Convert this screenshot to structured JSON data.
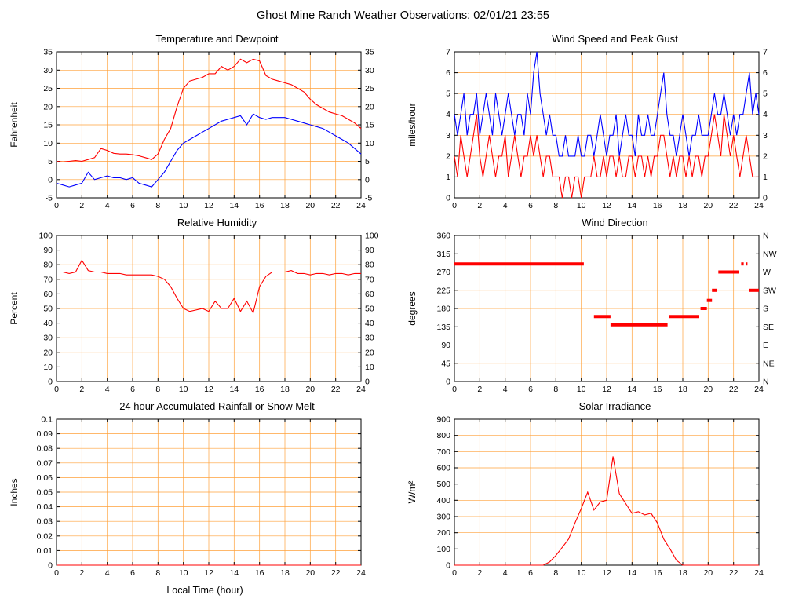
{
  "page_title": "Ghost Mine Ranch Weather Observations: 02/01/21 23:55",
  "x_axis_label": "Local Time (hour)",
  "colors": {
    "grid": "#ffa13a",
    "red": "#ff0000",
    "blue": "#0000ff",
    "axis": "#000000"
  },
  "chart_data": [
    {
      "id": "temperature-dewpoint",
      "type": "line",
      "title": "Temperature and Dewpoint",
      "ylabel": "Fahrenheit",
      "xlim": [
        0,
        24
      ],
      "ylim": [
        -5,
        35
      ],
      "xticks": [
        0,
        2,
        4,
        6,
        8,
        10,
        12,
        14,
        16,
        18,
        20,
        22,
        24
      ],
      "yticks": [
        -5,
        0,
        5,
        10,
        15,
        20,
        25,
        30,
        35
      ],
      "right": "same",
      "x_step": 0.5,
      "series": [
        {
          "name": "Temperature",
          "color": "red",
          "y": [
            5,
            4.8,
            5,
            5.2,
            5,
            5.5,
            6,
            8.5,
            8,
            7.2,
            7,
            7,
            6.8,
            6.5,
            6,
            5.5,
            7,
            11,
            14,
            20,
            25,
            27,
            27.5,
            28,
            29,
            29,
            31,
            30,
            31,
            33,
            32,
            33,
            32.5,
            28.5,
            27.5,
            27,
            26.5,
            26,
            25,
            24,
            22,
            20.5,
            19.5,
            18.5,
            18,
            17.5,
            16.5,
            15.5,
            14
          ]
        },
        {
          "name": "Dewpoint",
          "color": "blue",
          "y": [
            -1,
            -1.5,
            -2,
            -1.5,
            -1,
            2,
            0,
            0.5,
            1,
            0.5,
            0.5,
            0,
            0.5,
            -1,
            -1.5,
            -2,
            0,
            2,
            5,
            8,
            10,
            11,
            12,
            13,
            14,
            15,
            16,
            16.5,
            17,
            17.5,
            15,
            18,
            17,
            16.5,
            17,
            17,
            17,
            16.5,
            16,
            15.5,
            15,
            14.5,
            14,
            13,
            12,
            11,
            10,
            8.5,
            7
          ]
        }
      ]
    },
    {
      "id": "wind-speed-gust",
      "type": "line",
      "title": "Wind Speed and Peak Gust",
      "ylabel": "miles/hour",
      "xlim": [
        0,
        24
      ],
      "ylim": [
        0,
        7
      ],
      "xticks": [
        0,
        2,
        4,
        6,
        8,
        10,
        12,
        14,
        16,
        18,
        20,
        22,
        24
      ],
      "yticks": [
        0,
        1,
        2,
        3,
        4,
        5,
        6,
        7
      ],
      "right": "same",
      "x_step": 0.25,
      "series": [
        {
          "name": "Peak Gust",
          "color": "blue",
          "y": [
            4,
            3,
            4,
            5,
            3,
            4,
            4,
            5,
            3,
            4,
            5,
            4,
            3,
            5,
            4,
            3,
            4,
            5,
            4,
            3,
            4,
            4,
            3,
            5,
            4,
            6,
            7,
            5,
            4,
            3,
            4,
            3,
            3,
            2,
            2,
            3,
            2,
            2,
            2,
            3,
            2,
            2,
            3,
            3,
            2,
            3,
            4,
            3,
            2,
            3,
            3,
            4,
            2,
            3,
            4,
            3,
            3,
            2,
            4,
            3,
            3,
            4,
            3,
            3,
            4,
            5,
            6,
            4,
            3,
            3,
            2,
            3,
            4,
            3,
            2,
            3,
            3,
            4,
            3,
            3,
            3,
            4,
            5,
            4,
            4,
            5,
            4,
            3,
            4,
            3,
            4,
            4,
            5,
            6,
            4,
            5,
            4
          ]
        },
        {
          "name": "Wind Speed",
          "color": "red",
          "y": [
            2,
            1,
            3,
            2,
            1,
            2,
            3,
            4,
            2,
            1,
            2,
            3,
            2,
            1,
            2,
            2,
            3,
            1,
            2,
            3,
            2,
            1,
            2,
            2,
            3,
            2,
            3,
            2,
            1,
            2,
            2,
            1,
            1,
            1,
            0,
            1,
            1,
            0,
            1,
            1,
            0,
            1,
            1,
            1,
            2,
            1,
            1,
            2,
            1,
            2,
            2,
            1,
            2,
            1,
            1,
            2,
            2,
            1,
            2,
            2,
            1,
            2,
            1,
            2,
            2,
            3,
            3,
            2,
            1,
            2,
            1,
            2,
            2,
            1,
            2,
            1,
            2,
            2,
            1,
            2,
            2,
            3,
            4,
            3,
            2,
            4,
            3,
            2,
            3,
            2,
            1,
            2,
            3,
            2,
            1,
            1,
            1
          ]
        }
      ]
    },
    {
      "id": "relative-humidity",
      "type": "line",
      "title": "Relative Humidity",
      "ylabel": "Percent",
      "xlim": [
        0,
        24
      ],
      "ylim": [
        0,
        100
      ],
      "xticks": [
        0,
        2,
        4,
        6,
        8,
        10,
        12,
        14,
        16,
        18,
        20,
        22,
        24
      ],
      "yticks": [
        0,
        10,
        20,
        30,
        40,
        50,
        60,
        70,
        80,
        90,
        100
      ],
      "right": "same",
      "x_step": 0.5,
      "series": [
        {
          "name": "Relative Humidity",
          "color": "red",
          "y": [
            75,
            75,
            74,
            75,
            83,
            76,
            75,
            75,
            74,
            74,
            74,
            73,
            73,
            73,
            73,
            73,
            72,
            70,
            65,
            57,
            50,
            48,
            49,
            50,
            48,
            55,
            50,
            50,
            57,
            48,
            55,
            47,
            65,
            72,
            75,
            75,
            75,
            76,
            74,
            74,
            73,
            74,
            74,
            73,
            74,
            74,
            73,
            74,
            74
          ]
        }
      ]
    },
    {
      "id": "wind-direction",
      "type": "segments",
      "title": "Wind Direction",
      "ylabel": "degrees",
      "xlim": [
        0,
        24
      ],
      "ylim": [
        0,
        360
      ],
      "xticks": [
        0,
        2,
        4,
        6,
        8,
        10,
        12,
        14,
        16,
        18,
        20,
        22,
        24
      ],
      "yticks": [
        0,
        45,
        90,
        135,
        180,
        225,
        270,
        315,
        360
      ],
      "right_labels": [
        {
          "value": 360,
          "label": "N"
        },
        {
          "value": 315,
          "label": "NW"
        },
        {
          "value": 270,
          "label": "W"
        },
        {
          "value": 225,
          "label": "SW"
        },
        {
          "value": 180,
          "label": "S"
        },
        {
          "value": 135,
          "label": "SE"
        },
        {
          "value": 90,
          "label": "E"
        },
        {
          "value": 45,
          "label": "NE"
        },
        {
          "value": 0,
          "label": "N"
        }
      ],
      "series": [
        {
          "name": "Wind Direction",
          "color": "red",
          "segments": [
            [
              0,
              10.2,
              290
            ],
            [
              11.0,
              12.3,
              160
            ],
            [
              12.3,
              16.8,
              140
            ],
            [
              16.9,
              19.3,
              160
            ],
            [
              19.4,
              19.9,
              180
            ],
            [
              19.9,
              20.3,
              200
            ],
            [
              20.3,
              20.7,
              225
            ],
            [
              20.8,
              22.4,
              270
            ],
            [
              22.6,
              22.8,
              290
            ],
            [
              23.0,
              23.1,
              290
            ],
            [
              23.2,
              24.0,
              225
            ]
          ]
        }
      ]
    },
    {
      "id": "rainfall",
      "type": "line",
      "title": "24 hour Accumulated Rainfall or Snow Melt",
      "ylabel": "Inches",
      "xlim": [
        0,
        24
      ],
      "ylim": [
        0,
        0.1
      ],
      "xticks": [
        0,
        2,
        4,
        6,
        8,
        10,
        12,
        14,
        16,
        18,
        20,
        22,
        24
      ],
      "yticks": [
        0,
        0.01,
        0.02,
        0.03,
        0.04,
        0.05,
        0.06,
        0.07,
        0.08,
        0.09,
        0.1
      ],
      "ytick_labels": [
        "0",
        "0.01",
        "0.02",
        "0.03",
        "0.04",
        "0.05",
        "0.06",
        "0.07",
        "0.08",
        "0.09",
        "0.1"
      ],
      "series": [
        {
          "name": "Rainfall",
          "color": "red",
          "x": [
            0,
            24
          ],
          "y": [
            0,
            0
          ]
        }
      ]
    },
    {
      "id": "solar-irradiance",
      "type": "line",
      "title": "Solar Irradiance",
      "ylabel": "W/m²",
      "xlim": [
        0,
        24
      ],
      "ylim": [
        0,
        900
      ],
      "xticks": [
        0,
        2,
        4,
        6,
        8,
        10,
        12,
        14,
        16,
        18,
        20,
        22,
        24
      ],
      "yticks": [
        0,
        100,
        200,
        300,
        400,
        500,
        600,
        700,
        800,
        900
      ],
      "x_step": 0.5,
      "series": [
        {
          "name": "Solar Irradiance",
          "color": "red",
          "y": [
            0,
            0,
            0,
            0,
            0,
            0,
            0,
            0,
            0,
            0,
            0,
            0,
            0,
            0,
            0,
            20,
            60,
            110,
            160,
            260,
            350,
            450,
            340,
            390,
            400,
            670,
            440,
            380,
            320,
            330,
            310,
            320,
            260,
            160,
            100,
            30,
            0,
            0,
            0,
            0,
            0,
            0,
            0,
            0,
            0,
            0,
            0,
            0,
            0
          ]
        }
      ]
    }
  ]
}
